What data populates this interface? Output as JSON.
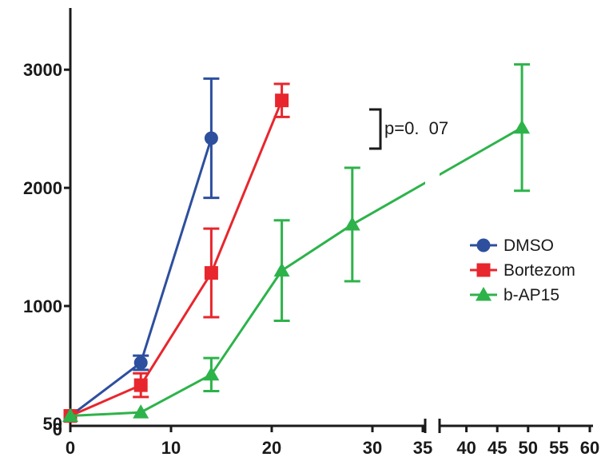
{
  "chart_data": {
    "type": "line",
    "title": "",
    "xlabel": "",
    "ylabel": "",
    "ylim": [
      0,
      3500
    ],
    "grid": false,
    "legend_position": "right",
    "x_axis_break": {
      "before": 35,
      "after": 35
    },
    "x_ticks_left": [
      0,
      10,
      20,
      30
    ],
    "x_ticks_right": [
      35,
      40,
      45,
      50,
      55,
      60
    ],
    "y_ticks": [
      0,
      50,
      1000,
      2000,
      3000
    ],
    "y_tick_labels": [
      "0",
      "50",
      "1000",
      "2000",
      "3000"
    ],
    "series": [
      {
        "name": "DMSO",
        "color": "#2d4f9e",
        "marker": "circle",
        "points": [
          {
            "x": 0,
            "y": 70,
            "err": 0
          },
          {
            "x": 7,
            "y": 520,
            "err": 60
          },
          {
            "x": 14,
            "y": 2420,
            "err": 505
          }
        ]
      },
      {
        "name": "Bortezomib",
        "color": "#e8262d",
        "marker": "square",
        "points": [
          {
            "x": 0,
            "y": 70,
            "err": 0
          },
          {
            "x": 7,
            "y": 330,
            "err": 100
          },
          {
            "x": 14,
            "y": 1280,
            "err": 375
          },
          {
            "x": 21,
            "y": 2740,
            "err": 140
          }
        ]
      },
      {
        "name": "b-AP15",
        "color": "#2db34a",
        "marker": "triangle",
        "points": [
          {
            "x": 0,
            "y": 70,
            "err": 0
          },
          {
            "x": 7,
            "y": 100,
            "err": 0
          },
          {
            "x": 14,
            "y": 420,
            "err": 140
          },
          {
            "x": 21,
            "y": 1300,
            "err": 425
          },
          {
            "x": 28,
            "y": 1690,
            "err": 480
          },
          {
            "x": 49,
            "y": 2510,
            "err": 535
          }
        ]
      }
    ],
    "legend_labels": [
      "DMSO",
      "Bortezom",
      "b-AP15"
    ],
    "annotation": {
      "text": "p=0.  07"
    }
  }
}
